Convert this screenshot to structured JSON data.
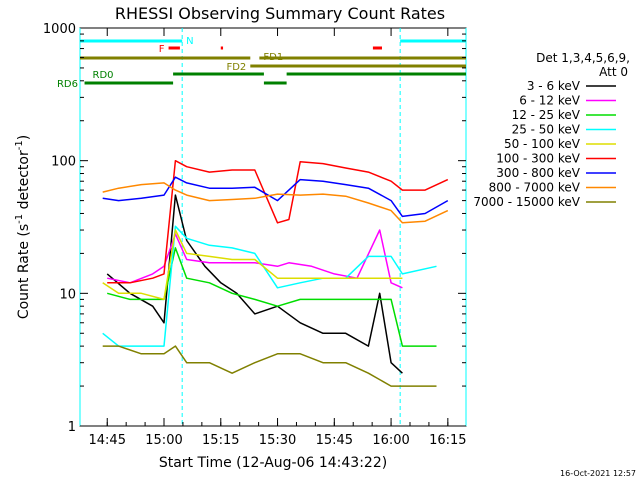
{
  "chart_data": {
    "type": "line",
    "title": "RHESSI Observing Summary Count Rates",
    "xlabel": "Start Time (12-Aug-06 14:43:22)",
    "ylabel_main": "Count Rate (s",
    "ylabel_sup": "-1",
    "ylabel_mid": " detector",
    "ylabel_sup2": "-1",
    "ylabel_end": ")",
    "y_scale": "log",
    "ylim": [
      1,
      1000
    ],
    "xlim_minutes": [
      14.63,
      16.33
    ],
    "x_ticks": [
      "14:45",
      "15:00",
      "15:15",
      "15:30",
      "15:45",
      "16:00",
      "16:15"
    ],
    "y_ticks": [
      "1",
      "10",
      "100",
      "1000"
    ],
    "legend_header": [
      "Det 1,3,4,5,6,9,",
      "Att 0"
    ],
    "timestamp": "16-Oct-2021 12:57",
    "flag_labels": {
      "n": "N",
      "f": "F",
      "fd1": "FD1",
      "fd2": "FD2",
      "rd0": "RD0",
      "rd6": "RD6"
    },
    "series": [
      {
        "name": "3 - 6 keV",
        "color": "#000000",
        "points": [
          [
            14.75,
            14
          ],
          [
            14.85,
            10
          ],
          [
            14.95,
            8
          ],
          [
            15.0,
            6
          ],
          [
            15.05,
            55
          ],
          [
            15.1,
            25
          ],
          [
            15.18,
            16
          ],
          [
            15.25,
            12
          ],
          [
            15.32,
            10
          ],
          [
            15.4,
            7
          ],
          [
            15.5,
            8
          ],
          [
            15.6,
            6
          ],
          [
            15.7,
            5
          ],
          [
            15.8,
            5
          ],
          [
            15.9,
            4
          ],
          [
            15.95,
            10
          ],
          [
            16.0,
            3
          ],
          [
            16.05,
            2.5
          ]
        ]
      },
      {
        "name": "6 - 12 keV",
        "color": "#ff00ff",
        "points": [
          [
            14.75,
            13
          ],
          [
            14.85,
            12
          ],
          [
            14.95,
            14
          ],
          [
            15.0,
            16
          ],
          [
            15.05,
            28
          ],
          [
            15.1,
            18
          ],
          [
            15.2,
            17
          ],
          [
            15.3,
            17
          ],
          [
            15.4,
            17
          ],
          [
            15.5,
            16
          ],
          [
            15.55,
            17
          ],
          [
            15.65,
            16
          ],
          [
            15.75,
            14
          ],
          [
            15.85,
            13
          ],
          [
            15.95,
            30
          ],
          [
            16.0,
            12
          ],
          [
            16.05,
            11
          ]
        ]
      },
      {
        "name": "12 - 25 keV",
        "color": "#00dd00",
        "points": [
          [
            14.75,
            10
          ],
          [
            14.85,
            9
          ],
          [
            14.95,
            9
          ],
          [
            15.0,
            9
          ],
          [
            15.05,
            22
          ],
          [
            15.1,
            13
          ],
          [
            15.2,
            12
          ],
          [
            15.3,
            10
          ],
          [
            15.4,
            9
          ],
          [
            15.5,
            8
          ],
          [
            15.6,
            9
          ],
          [
            15.7,
            9
          ],
          [
            15.8,
            9
          ],
          [
            15.9,
            9
          ],
          [
            16.0,
            9
          ],
          [
            16.05,
            4
          ],
          [
            16.2,
            4
          ]
        ]
      },
      {
        "name": "25 - 50 keV",
        "color": "#00ffff",
        "points": [
          [
            14.73,
            5
          ],
          [
            14.8,
            4
          ],
          [
            14.9,
            4
          ],
          [
            15.0,
            4
          ],
          [
            15.05,
            32
          ],
          [
            15.1,
            26
          ],
          [
            15.2,
            23
          ],
          [
            15.3,
            22
          ],
          [
            15.4,
            20
          ],
          [
            15.5,
            11
          ],
          [
            15.6,
            12
          ],
          [
            15.7,
            13
          ],
          [
            15.8,
            13
          ],
          [
            15.9,
            19
          ],
          [
            16.0,
            19
          ],
          [
            16.05,
            14
          ],
          [
            16.2,
            16
          ]
        ]
      },
      {
        "name": "50 - 100 keV",
        "color": "#dddd00",
        "points": [
          [
            14.73,
            12
          ],
          [
            14.8,
            10
          ],
          [
            14.9,
            10
          ],
          [
            15.0,
            9
          ],
          [
            15.05,
            30
          ],
          [
            15.1,
            20
          ],
          [
            15.2,
            19
          ],
          [
            15.3,
            18
          ],
          [
            15.4,
            18
          ],
          [
            15.5,
            13
          ],
          [
            15.6,
            13
          ],
          [
            15.7,
            13
          ],
          [
            15.8,
            13
          ],
          [
            15.9,
            13
          ],
          [
            16.0,
            13
          ],
          [
            16.05,
            13
          ]
        ]
      },
      {
        "name": "100 - 300 keV",
        "color": "#ff0000",
        "points": [
          [
            14.75,
            12
          ],
          [
            14.85,
            12
          ],
          [
            14.95,
            13
          ],
          [
            15.0,
            14
          ],
          [
            15.05,
            100
          ],
          [
            15.1,
            90
          ],
          [
            15.2,
            82
          ],
          [
            15.3,
            85
          ],
          [
            15.4,
            85
          ],
          [
            15.5,
            34
          ],
          [
            15.55,
            36
          ],
          [
            15.6,
            98
          ],
          [
            15.7,
            95
          ],
          [
            15.8,
            88
          ],
          [
            15.9,
            82
          ],
          [
            16.0,
            70
          ],
          [
            16.05,
            60
          ],
          [
            16.15,
            60
          ],
          [
            16.25,
            72
          ]
        ]
      },
      {
        "name": "300 - 800 keV",
        "color": "#0000ff",
        "points": [
          [
            14.73,
            52
          ],
          [
            14.8,
            50
          ],
          [
            14.9,
            52
          ],
          [
            15.0,
            55
          ],
          [
            15.05,
            75
          ],
          [
            15.1,
            68
          ],
          [
            15.2,
            62
          ],
          [
            15.3,
            62
          ],
          [
            15.4,
            63
          ],
          [
            15.5,
            50
          ],
          [
            15.6,
            72
          ],
          [
            15.7,
            70
          ],
          [
            15.8,
            66
          ],
          [
            15.9,
            62
          ],
          [
            16.0,
            50
          ],
          [
            16.05,
            38
          ],
          [
            16.15,
            40
          ],
          [
            16.25,
            50
          ]
        ]
      },
      {
        "name": "800 - 7000 keV",
        "color": "#ff8800",
        "points": [
          [
            14.73,
            58
          ],
          [
            14.8,
            62
          ],
          [
            14.9,
            66
          ],
          [
            15.0,
            68
          ],
          [
            15.05,
            60
          ],
          [
            15.1,
            55
          ],
          [
            15.2,
            50
          ],
          [
            15.3,
            51
          ],
          [
            15.4,
            52
          ],
          [
            15.5,
            56
          ],
          [
            15.6,
            55
          ],
          [
            15.7,
            56
          ],
          [
            15.8,
            54
          ],
          [
            15.9,
            48
          ],
          [
            16.0,
            42
          ],
          [
            16.05,
            34
          ],
          [
            16.15,
            35
          ],
          [
            16.25,
            42
          ]
        ]
      },
      {
        "name": "7000 - 15000 keV",
        "color": "#808000",
        "points": [
          [
            14.73,
            4
          ],
          [
            14.8,
            4
          ],
          [
            14.9,
            3.5
          ],
          [
            15.0,
            3.5
          ],
          [
            15.05,
            4
          ],
          [
            15.1,
            3
          ],
          [
            15.2,
            3
          ],
          [
            15.3,
            2.5
          ],
          [
            15.4,
            3
          ],
          [
            15.5,
            3.5
          ],
          [
            15.6,
            3.5
          ],
          [
            15.7,
            3
          ],
          [
            15.8,
            3
          ],
          [
            15.9,
            2.5
          ],
          [
            16.0,
            2
          ],
          [
            16.05,
            2
          ],
          [
            16.2,
            2
          ]
        ]
      }
    ],
    "flags": {
      "n_segments": [
        [
          14.63,
          15.08
        ],
        [
          16.04,
          16.33
        ]
      ],
      "f_segments": [
        [
          15.02,
          15.07
        ],
        [
          15.25,
          15.26
        ],
        [
          15.92,
          15.96
        ]
      ],
      "fd1_segments": [
        [
          14.63,
          15.38
        ],
        [
          15.42,
          16.33
        ]
      ],
      "fd2_segments": [
        [
          15.38,
          16.33
        ]
      ],
      "rd0_segments": [
        [
          15.04,
          15.44
        ],
        [
          15.54,
          16.33
        ]
      ],
      "rd6_segments": [
        [
          14.65,
          15.04
        ],
        [
          15.44,
          15.54
        ]
      ]
    },
    "vlines_minutes": [
      14.63,
      15.08,
      16.04,
      16.33
    ]
  }
}
